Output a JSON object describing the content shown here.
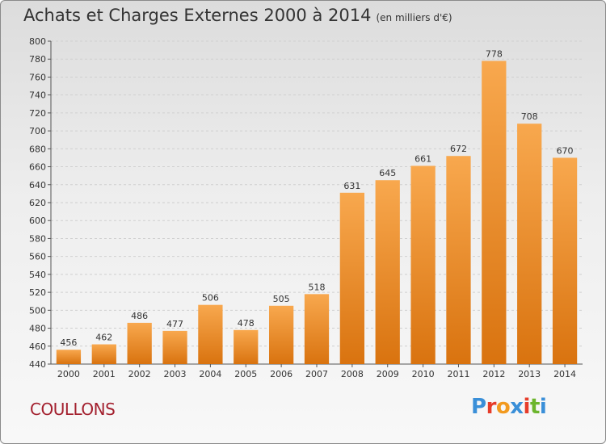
{
  "title": {
    "main": "Achats et Charges Externes 2000 à 2014",
    "unit": "(en milliers d'€)"
  },
  "place": "COULLONS",
  "brand": {
    "letters": [
      "P",
      "r",
      "o",
      "x",
      "i",
      "t",
      "i"
    ],
    "colors": [
      "#3a8fd8",
      "#e63c2a",
      "#f29a1f",
      "#3a8fd8",
      "#e63c2a",
      "#6cb52d",
      "#3a8fd8"
    ]
  },
  "colors": {
    "bar_top": "#f8a84e",
    "bar_bottom": "#d9730f",
    "grid": "#cfcfcf",
    "axis": "#555555",
    "text": "#333333"
  },
  "chart_data": {
    "type": "bar",
    "title": "Achats et Charges Externes 2000 à 2014",
    "xlabel": "",
    "ylabel": "",
    "categories": [
      "2000",
      "2001",
      "2002",
      "2003",
      "2004",
      "2005",
      "2006",
      "2007",
      "2008",
      "2009",
      "2010",
      "2011",
      "2012",
      "2013",
      "2014"
    ],
    "values": [
      456,
      462,
      486,
      477,
      506,
      478,
      505,
      518,
      631,
      645,
      661,
      672,
      778,
      708,
      670
    ],
    "ylim": [
      440,
      800
    ],
    "yticks": [
      440,
      460,
      480,
      500,
      520,
      540,
      560,
      580,
      600,
      620,
      640,
      660,
      680,
      700,
      720,
      740,
      760,
      780,
      800
    ],
    "grid": true,
    "data_labels": true
  }
}
